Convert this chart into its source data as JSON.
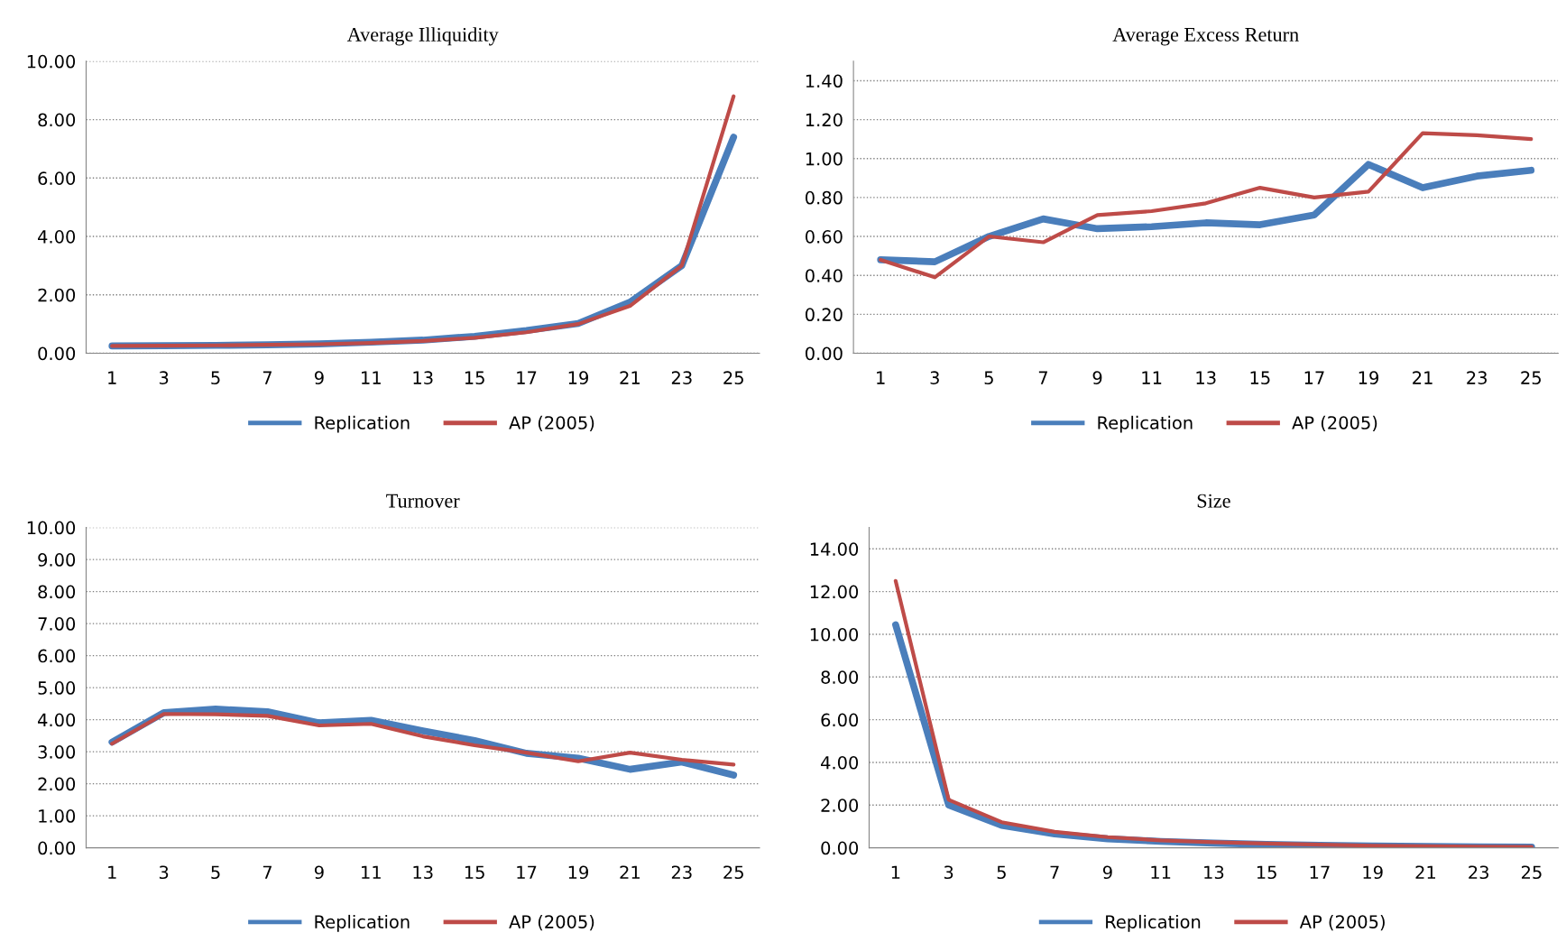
{
  "chart_data": [
    {
      "type": "line",
      "title": "Average Illiquidity",
      "categories": [
        "1",
        "3",
        "5",
        "7",
        "9",
        "11",
        "13",
        "15",
        "17",
        "19",
        "21",
        "23",
        "25"
      ],
      "ylim": [
        0,
        10
      ],
      "yticks": [
        {
          "value": 0,
          "label": "0.00"
        },
        {
          "value": 2,
          "label": "2.00"
        },
        {
          "value": 4,
          "label": "4.00"
        },
        {
          "value": 6,
          "label": "6.00"
        },
        {
          "value": 8,
          "label": "8.00"
        },
        {
          "value": 10,
          "label": "10.00"
        }
      ],
      "grid": "y",
      "legend": "bottom",
      "line_style": "solid",
      "series": [
        {
          "name": "Replication",
          "color": "#4a7ebb",
          "values": [
            0.25,
            0.26,
            0.27,
            0.29,
            0.32,
            0.38,
            0.45,
            0.58,
            0.78,
            1.02,
            1.75,
            3.0,
            7.4
          ]
        },
        {
          "name": "AP (2005)",
          "color": "#be4b48",
          "values": [
            0.25,
            0.26,
            0.27,
            0.29,
            0.31,
            0.35,
            0.42,
            0.53,
            0.72,
            1.0,
            1.62,
            3.0,
            8.8
          ]
        }
      ]
    },
    {
      "type": "line",
      "title": "Average Excess Return",
      "categories": [
        "1",
        "3",
        "5",
        "7",
        "9",
        "11",
        "13",
        "15",
        "17",
        "19",
        "21",
        "23",
        "25"
      ],
      "ylim": [
        0,
        1.5
      ],
      "yticks": [
        {
          "value": 0,
          "label": "0.00"
        },
        {
          "value": 0.2,
          "label": "0.20"
        },
        {
          "value": 0.4,
          "label": "0.40"
        },
        {
          "value": 0.6,
          "label": "0.60"
        },
        {
          "value": 0.8,
          "label": "0.80"
        },
        {
          "value": 1.0,
          "label": "1.00"
        },
        {
          "value": 1.2,
          "label": "1.20"
        },
        {
          "value": 1.4,
          "label": "1.40"
        }
      ],
      "grid": "y",
      "legend": "bottom",
      "line_style": "solid",
      "series": [
        {
          "name": "Replication",
          "color": "#4a7ebb",
          "values": [
            0.48,
            0.47,
            0.6,
            0.69,
            0.64,
            0.65,
            0.67,
            0.66,
            0.71,
            0.97,
            0.85,
            0.91,
            0.94
          ]
        },
        {
          "name": "AP (2005)",
          "color": "#be4b48",
          "values": [
            0.48,
            0.39,
            0.6,
            0.57,
            0.71,
            0.73,
            0.77,
            0.85,
            0.8,
            0.83,
            1.13,
            1.12,
            1.1
          ]
        }
      ]
    },
    {
      "type": "line",
      "title": "Turnover",
      "categories": [
        "1",
        "3",
        "5",
        "7",
        "9",
        "11",
        "13",
        "15",
        "17",
        "19",
        "21",
        "23",
        "25"
      ],
      "ylim": [
        0,
        10
      ],
      "yticks": [
        {
          "value": 0,
          "label": "0.00"
        },
        {
          "value": 1,
          "label": "1.00"
        },
        {
          "value": 2,
          "label": "2.00"
        },
        {
          "value": 3,
          "label": "3.00"
        },
        {
          "value": 4,
          "label": "4.00"
        },
        {
          "value": 5,
          "label": "5.00"
        },
        {
          "value": 6,
          "label": "6.00"
        },
        {
          "value": 7,
          "label": "7.00"
        },
        {
          "value": 8,
          "label": "8.00"
        },
        {
          "value": 9,
          "label": "9.00"
        },
        {
          "value": 10,
          "label": "10.00"
        }
      ],
      "grid": "y",
      "legend": "bottom",
      "line_style": "solid",
      "series": [
        {
          "name": "Replication",
          "color": "#4a7ebb",
          "values": [
            3.3,
            4.22,
            4.33,
            4.25,
            3.9,
            3.98,
            3.65,
            3.35,
            2.95,
            2.8,
            2.45,
            2.68,
            2.27
          ]
        },
        {
          "name": "AP (2005)",
          "color": "#be4b48",
          "values": [
            3.25,
            4.18,
            4.17,
            4.12,
            3.82,
            3.87,
            3.48,
            3.2,
            2.97,
            2.7,
            2.97,
            2.75,
            2.6
          ]
        }
      ]
    },
    {
      "type": "line",
      "title": "Size",
      "categories": [
        "1",
        "3",
        "5",
        "7",
        "9",
        "11",
        "13",
        "15",
        "17",
        "19",
        "21",
        "23",
        "25"
      ],
      "ylim": [
        0,
        15
      ],
      "yticks": [
        {
          "value": 0,
          "label": "0.00"
        },
        {
          "value": 2,
          "label": "2.00"
        },
        {
          "value": 4,
          "label": "4.00"
        },
        {
          "value": 6,
          "label": "6.00"
        },
        {
          "value": 8,
          "label": "8.00"
        },
        {
          "value": 10,
          "label": "10.00"
        },
        {
          "value": 12,
          "label": "12.00"
        },
        {
          "value": 14,
          "label": "14.00"
        }
      ],
      "grid": "y",
      "legend": "bottom",
      "line_style": "solid",
      "series": [
        {
          "name": "Replication",
          "color": "#4a7ebb",
          "values": [
            10.45,
            2.0,
            1.05,
            0.65,
            0.42,
            0.3,
            0.22,
            0.16,
            0.12,
            0.09,
            0.06,
            0.04,
            0.03
          ]
        },
        {
          "name": "AP (2005)",
          "color": "#be4b48",
          "values": [
            12.5,
            2.25,
            1.2,
            0.75,
            0.5,
            0.35,
            0.26,
            0.2,
            0.15,
            0.1,
            0.07,
            0.05,
            0.04
          ]
        }
      ]
    }
  ]
}
